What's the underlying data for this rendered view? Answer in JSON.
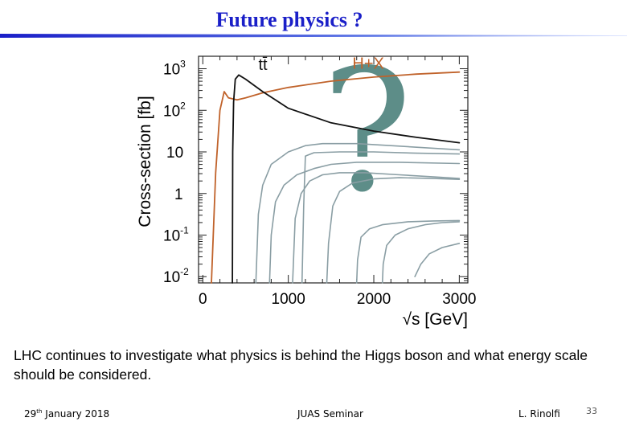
{
  "slide": {
    "title": "Future physics ?",
    "body_text": "LHC continues to investigate what physics is behind the Higgs boson and what energy scale should be considered.",
    "footer": {
      "date_day": "29",
      "date_sup": "th",
      "date_rest": " January 2018",
      "center": "JUAS Seminar",
      "author": "L. Rinolfi",
      "page": "33"
    },
    "colors": {
      "title": "#1a1fc8",
      "hx": "#c0622a",
      "tt": "#111111",
      "gray": "#8a9ea4",
      "question": "#5d8d88"
    }
  },
  "chart_data": {
    "type": "line",
    "xlabel": "√s [GeV]",
    "ylabel": "Cross-section [fb]",
    "xlim": [
      -50,
      3100
    ],
    "ylim": [
      -2.15,
      3.3
    ],
    "y_log_scale": true,
    "x_ticks": [
      "0",
      "1000",
      "2000",
      "3000"
    ],
    "x_tick_values": [
      0,
      1000,
      2000,
      3000
    ],
    "y_tick_exponents": [
      3,
      2,
      1,
      0,
      -1,
      -2
    ],
    "y_ticks": [
      {
        "base": "10",
        "exp": "3"
      },
      {
        "base": "10",
        "exp": "2"
      },
      {
        "base": "10",
        "exp": ""
      },
      {
        "base": "1",
        "exp": ""
      },
      {
        "base": "10",
        "exp": "-1"
      },
      {
        "base": "10",
        "exp": "-2"
      }
    ],
    "annotation": "?",
    "series": [
      {
        "name": "H+X",
        "color": "#c0622a",
        "x": [
          100,
          150,
          200,
          250,
          300,
          400,
          500,
          700,
          1000,
          1500,
          2000,
          2500,
          3000
        ],
        "y_log10": [
          -2.15,
          0.5,
          2.0,
          2.45,
          2.3,
          2.25,
          2.3,
          2.42,
          2.55,
          2.7,
          2.8,
          2.87,
          2.92
        ]
      },
      {
        "name": "tt̄",
        "color": "#111111",
        "x": [
          346,
          350,
          360,
          380,
          420,
          500,
          700,
          1000,
          1500,
          2000,
          2500,
          3000
        ],
        "y_log10": [
          -2.15,
          1.0,
          2.2,
          2.75,
          2.85,
          2.75,
          2.45,
          2.05,
          1.7,
          1.5,
          1.35,
          1.22
        ]
      },
      {
        "name": "",
        "color": "#8a9ea4",
        "x": [
          620,
          650,
          700,
          800,
          1000,
          1200,
          1400,
          1800,
          2200,
          3000
        ],
        "y_log10": [
          -2.15,
          -0.5,
          0.2,
          0.7,
          1.0,
          1.15,
          1.2,
          1.2,
          1.15,
          1.05
        ]
      },
      {
        "name": "",
        "color": "#8a9ea4",
        "x": [
          780,
          800,
          850,
          950,
          1100,
          1300,
          1500,
          1800,
          2300,
          3000
        ],
        "y_log10": [
          -2.15,
          -1.0,
          -0.2,
          0.2,
          0.45,
          0.6,
          0.7,
          0.75,
          0.75,
          0.72
        ]
      },
      {
        "name": "",
        "color": "#8a9ea4",
        "x": [
          1050,
          1080,
          1150,
          1250,
          1400,
          1600,
          1900,
          2300,
          2700,
          3000
        ],
        "y_log10": [
          -2.15,
          -0.6,
          0.0,
          0.3,
          0.45,
          0.5,
          0.5,
          0.45,
          0.4,
          0.36
        ]
      },
      {
        "name": "",
        "color": "#8a9ea4",
        "x": [
          1160,
          1180,
          1200,
          1300,
          1600,
          2000,
          2500,
          3000
        ],
        "y_log10": [
          -2.15,
          -0.3,
          0.9,
          0.98,
          1.0,
          1.0,
          0.97,
          0.95
        ]
      },
      {
        "name": "",
        "color": "#8a9ea4",
        "x": [
          1450,
          1470,
          1520,
          1600,
          1750,
          2000,
          2300,
          2700,
          3000
        ],
        "y_log10": [
          -2.15,
          -1.2,
          -0.3,
          0.05,
          0.25,
          0.35,
          0.38,
          0.36,
          0.34
        ]
      },
      {
        "name": "",
        "color": "#8a9ea4",
        "x": [
          1800,
          1810,
          1850,
          1950,
          2100,
          2400,
          2700,
          3000
        ],
        "y_log10": [
          -2.15,
          -1.6,
          -1.05,
          -0.85,
          -0.75,
          -0.68,
          -0.66,
          -0.65
        ]
      },
      {
        "name": "",
        "color": "#8a9ea4",
        "x": [
          2100,
          2110,
          2150,
          2250,
          2400,
          2600,
          2800,
          3000
        ],
        "y_log10": [
          -2.15,
          -1.7,
          -1.25,
          -1.0,
          -0.85,
          -0.75,
          -0.7,
          -0.68
        ]
      },
      {
        "name": "",
        "color": "#8a9ea4",
        "x": [
          2480,
          2550,
          2650,
          2800,
          3000
        ],
        "y_log10": [
          -2.0,
          -1.7,
          -1.45,
          -1.3,
          -1.2
        ]
      }
    ],
    "labels": [
      {
        "text": "tt̄",
        "color": "#111111"
      },
      {
        "text": "H+X",
        "color": "#c0622a"
      }
    ]
  }
}
